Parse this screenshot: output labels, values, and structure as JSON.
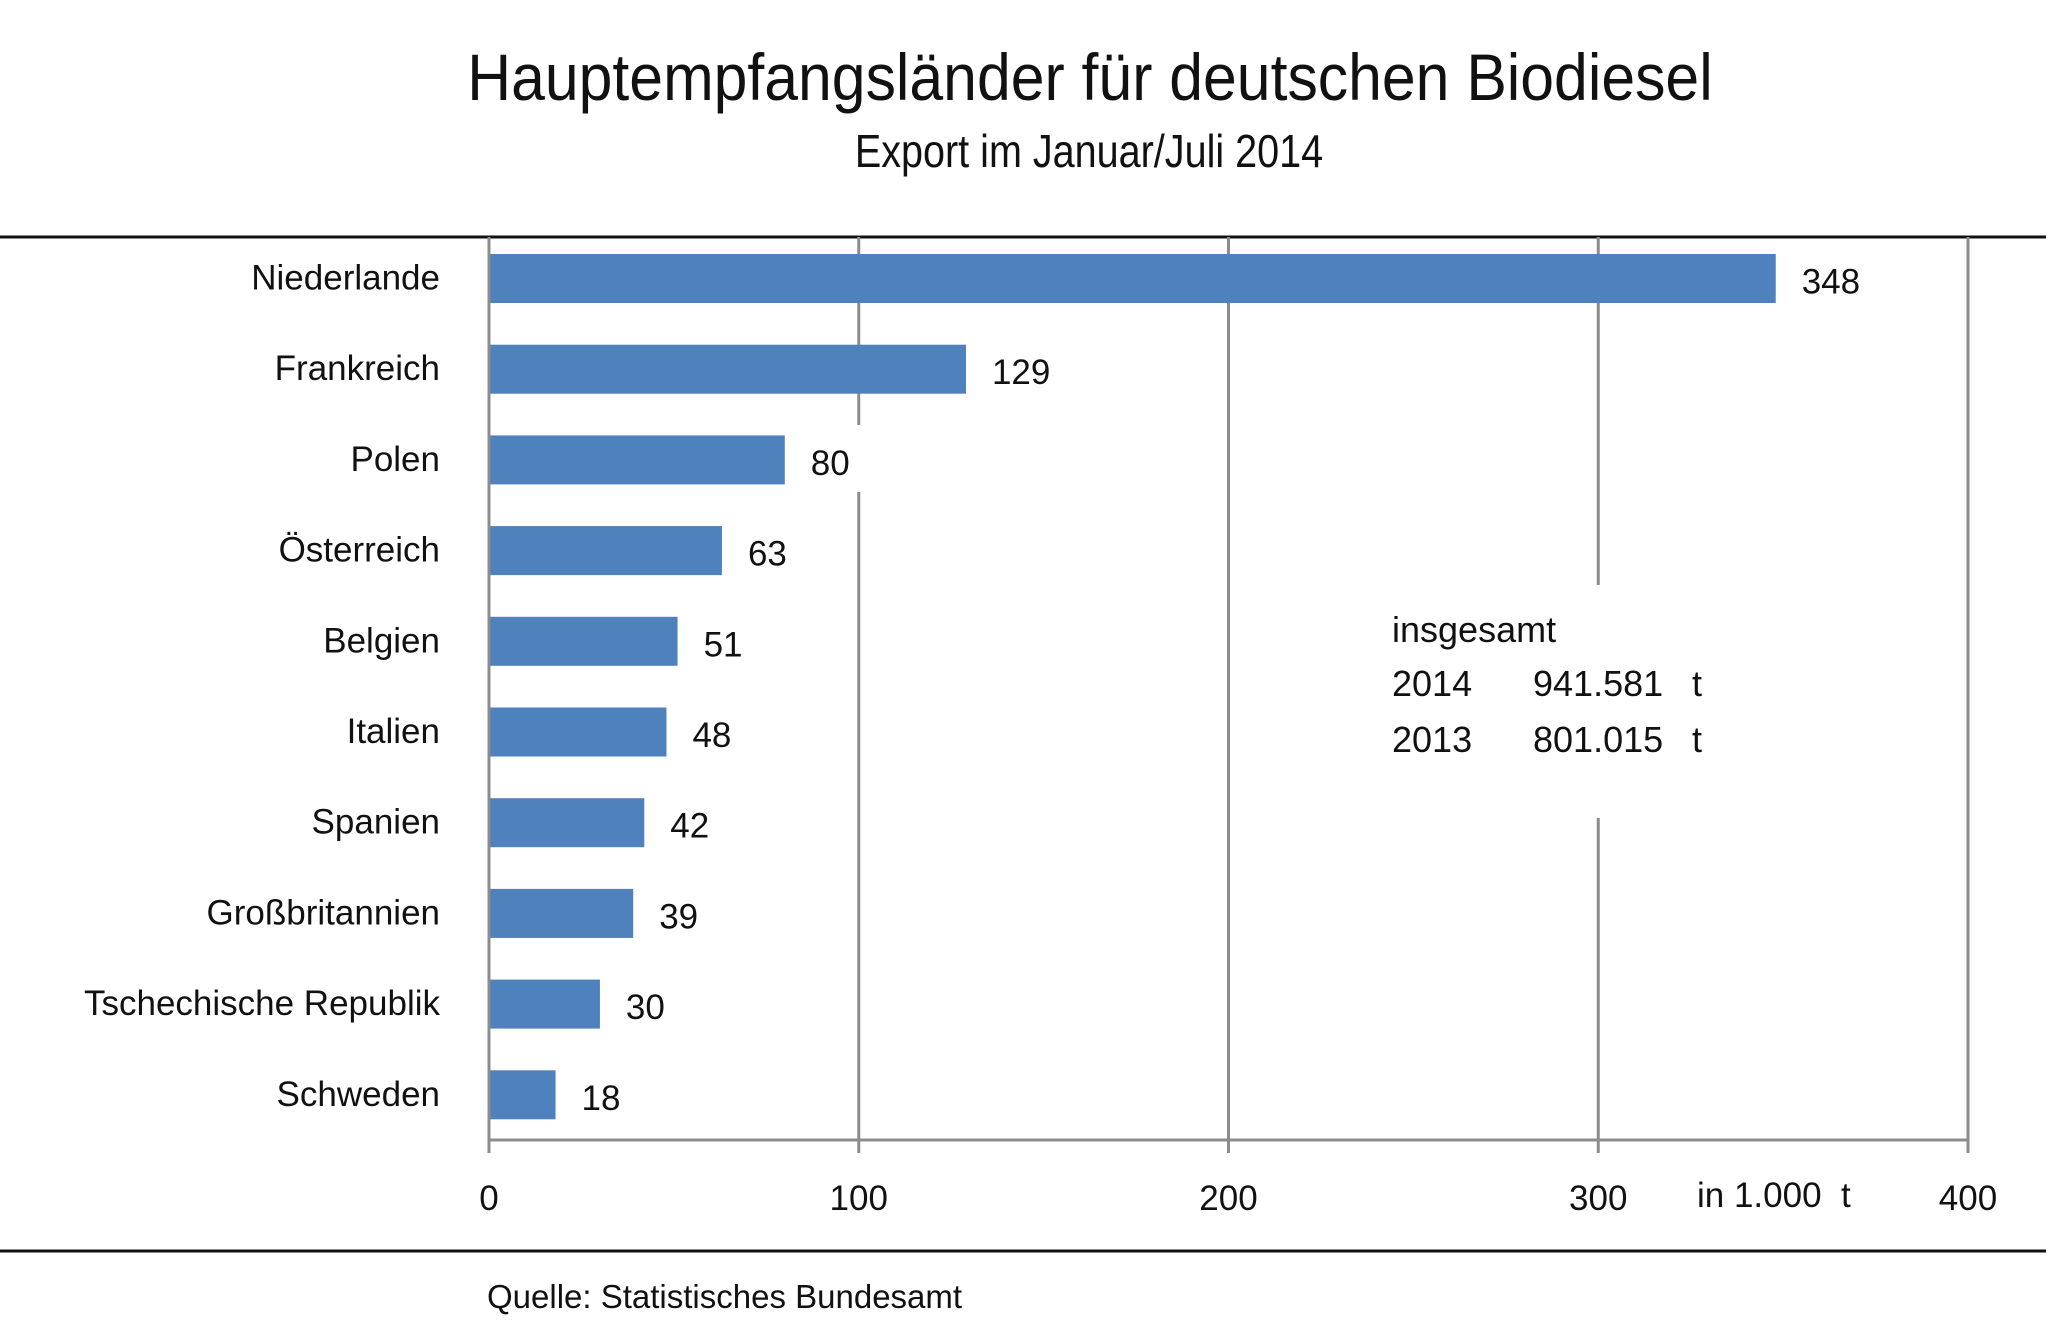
{
  "chart_data": {
    "type": "bar",
    "orientation": "horizontal",
    "title": "Hauptempfangsländer für deutschen Biodiesel",
    "subtitle": "Export im Januar/Juli 2014",
    "categories": [
      "Niederlande",
      "Frankreich",
      "Polen",
      "Österreich",
      "Belgien",
      "Italien",
      "Spanien",
      "Großbritannien",
      "Tschechische  Republik",
      "Schweden"
    ],
    "values": [
      348,
      129,
      80,
      63,
      51,
      48,
      42,
      39,
      30,
      18
    ],
    "xlabel": "in 1.000  t",
    "ylabel": "",
    "xlim": [
      0,
      400
    ],
    "xticks": [
      0,
      100,
      200,
      300,
      400
    ],
    "xtick_labels": [
      "0",
      "100",
      "200",
      "300",
      "400"
    ],
    "grid": true,
    "bar_color": "#4f81bd",
    "annotation": {
      "heading": "insgesamt",
      "rows": [
        {
          "year": "2014",
          "value": "941.581",
          "unit": "t"
        },
        {
          "year": "2013",
          "value": "801.015",
          "unit": "t"
        }
      ]
    },
    "source": "Quelle: Statistisches Bundesamt"
  },
  "colors": {
    "bar": "#4f81bd",
    "grid": "#8c8c8c",
    "rule": "#111111",
    "text": "#111111"
  }
}
